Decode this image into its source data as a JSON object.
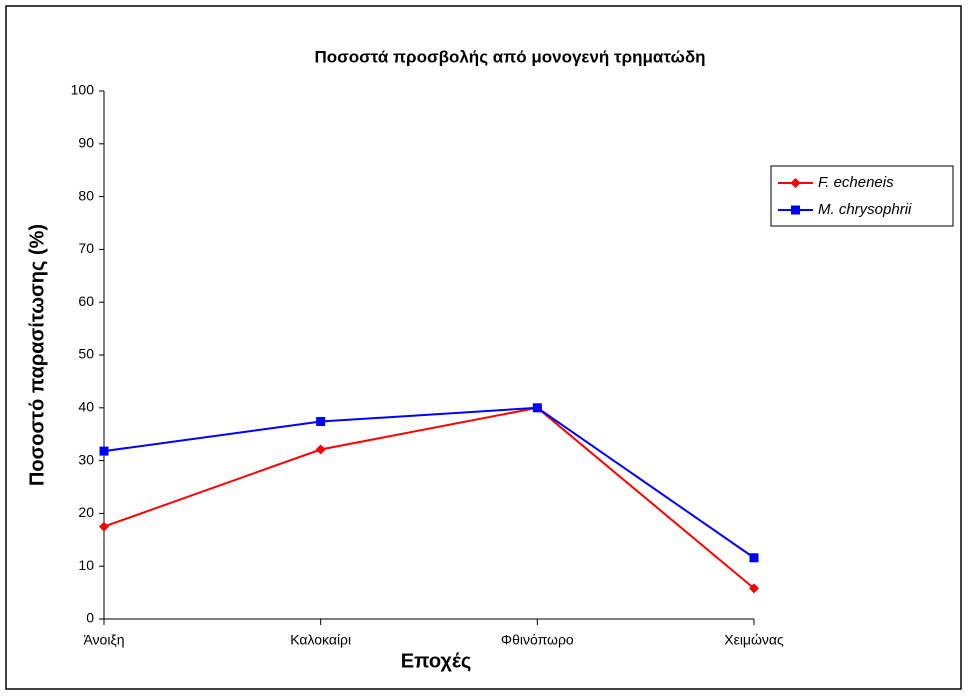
{
  "chart_data": {
    "type": "line",
    "title": "Ποσοστά προσβολής από μονογενή τρηματώδη",
    "x_label": "Εποχές",
    "y_label": "Ποσοστό παρασίτωσης (%)",
    "categories": [
      "Άνοιξη",
      "Καλοκαίρι",
      "Φθινόπωρο",
      "Χειμώνας"
    ],
    "series": [
      {
        "name": "F. echeneis",
        "color": "#ff0000",
        "marker": "diamond",
        "values": [
          17.5,
          32.1,
          40,
          5.8
        ]
      },
      {
        "name": "M. chrysophrii",
        "color": "#0000ff",
        "marker": "square",
        "values": [
          31.8,
          37.4,
          40,
          11.6
        ]
      }
    ],
    "ylim": [
      0,
      100
    ],
    "yticks": [
      0,
      10,
      20,
      30,
      40,
      50,
      60,
      70,
      80,
      90,
      100
    ],
    "grid": false,
    "legend": "right"
  }
}
